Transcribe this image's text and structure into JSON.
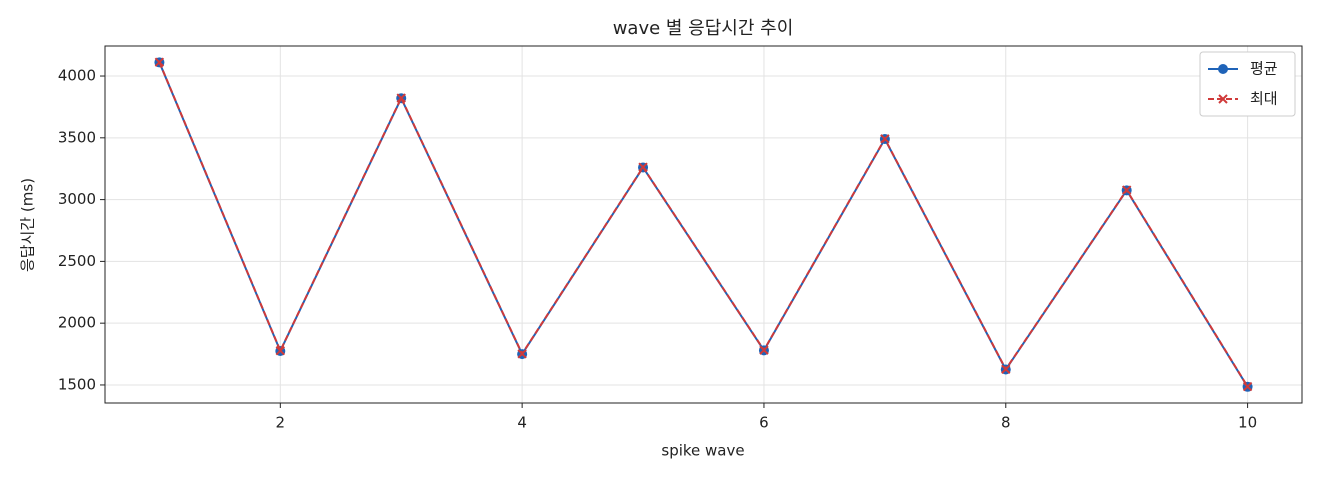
{
  "chart_data": {
    "type": "line",
    "title": "wave 별 응답시간 추이",
    "x_label": "spike wave",
    "y_label": "응답시간 (ms)",
    "x": [
      1,
      2,
      3,
      4,
      5,
      6,
      7,
      8,
      9,
      10
    ],
    "series": [
      {
        "name": "평균",
        "color": "#1f63b8",
        "marker": "o",
        "linestyle": "solid",
        "values": [
          4110,
          1775,
          3820,
          1750,
          3260,
          1780,
          3490,
          1625,
          3075,
          1485
        ]
      },
      {
        "name": "최대",
        "color": "#d03a3a",
        "marker": "x",
        "linestyle": "dashed",
        "values": [
          4112,
          1777,
          3822,
          1752,
          3262,
          1782,
          3492,
          1627,
          3077,
          1487
        ]
      }
    ],
    "xlim": [
      0.55,
      10.45
    ],
    "xticks": [
      2,
      4,
      6,
      8,
      10
    ],
    "ylim": [
      1354,
      4243
    ],
    "yticks": [
      1500,
      2000,
      2500,
      3000,
      3500,
      4000
    ],
    "grid": true,
    "legend": "upper right"
  }
}
